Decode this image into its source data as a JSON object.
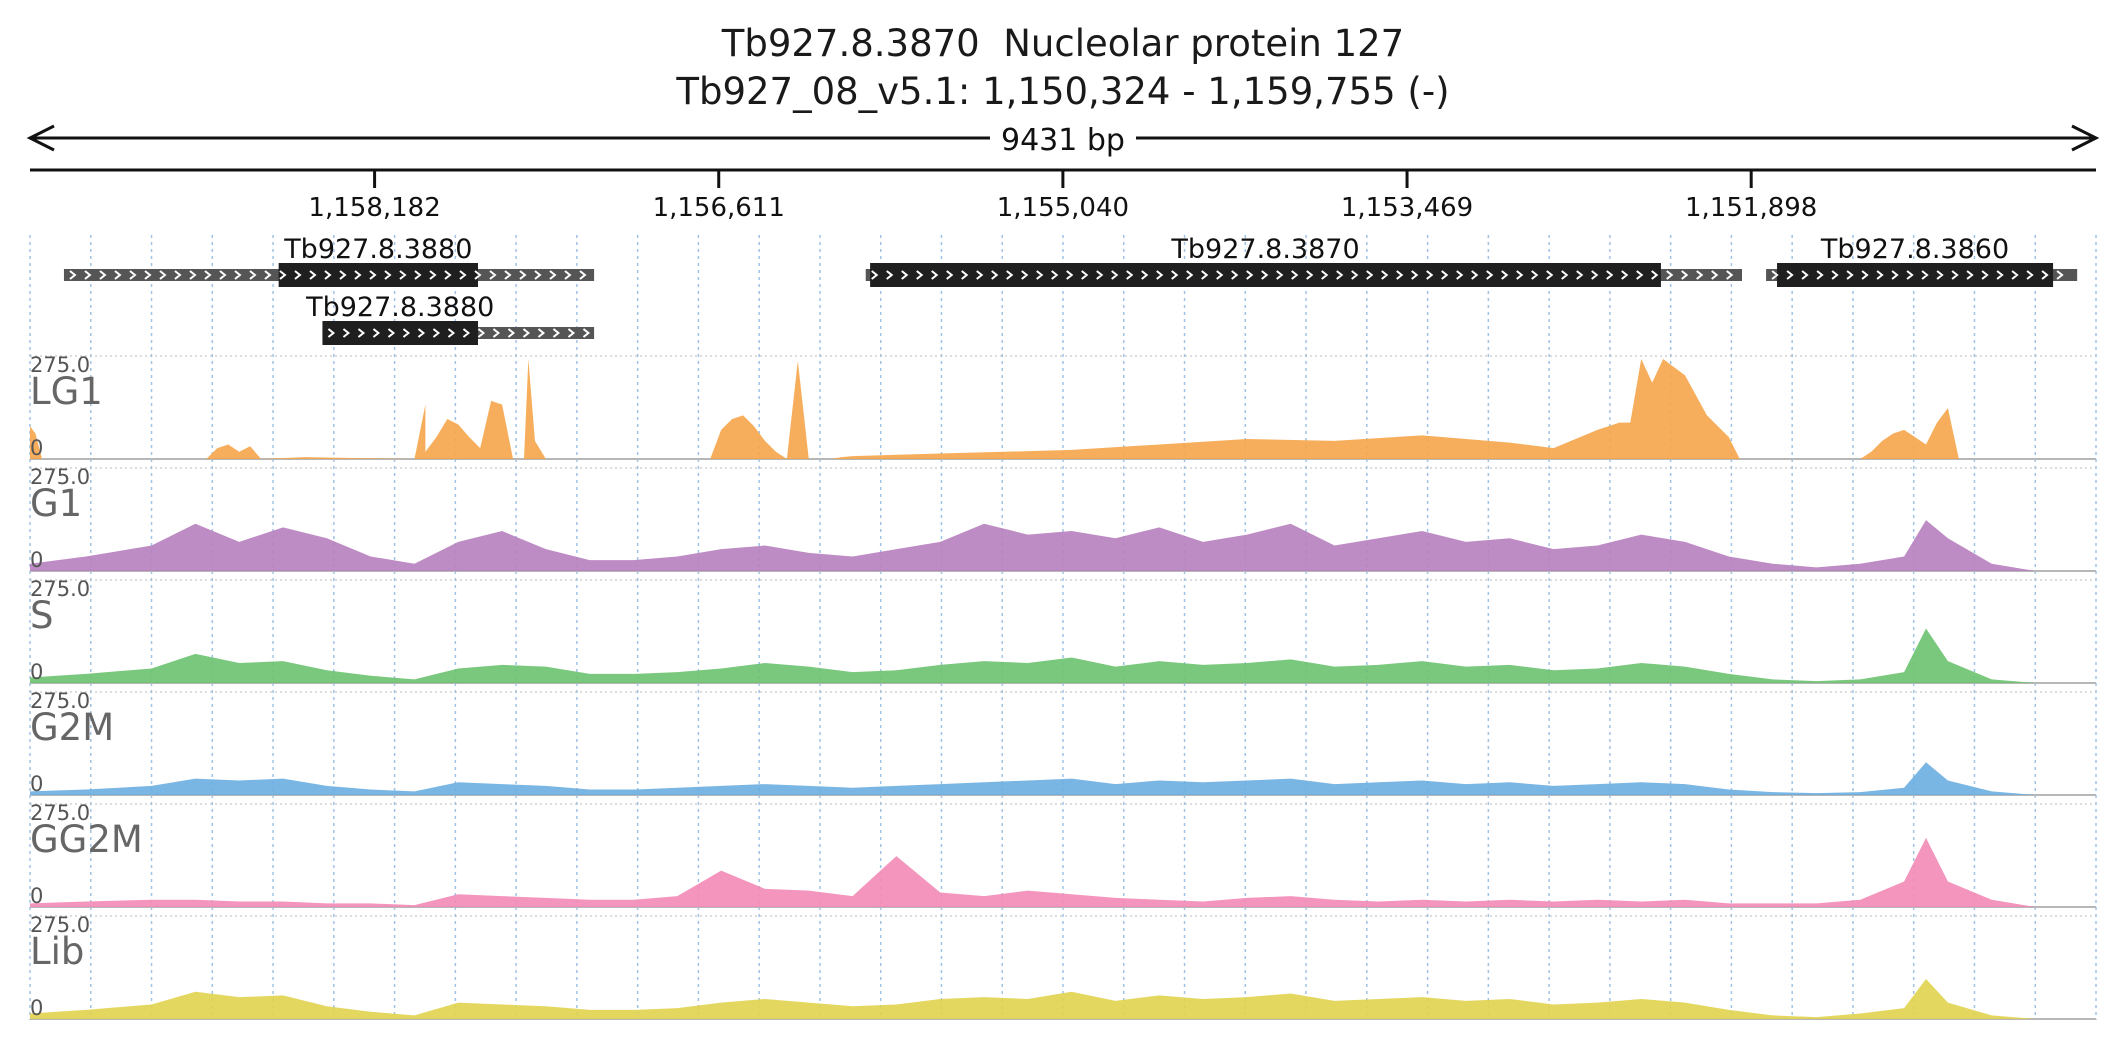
{
  "title": {
    "line1_gene": "Tb927.8.3870",
    "line1_product": "Nucleolar protein 127",
    "line2_location": "Tb927_08_v5.1: 1,150,324 - 1,159,755 (-)"
  },
  "region_length_label": "9431 bp",
  "colors": {
    "LG1": "#f5a54a",
    "G1": "#b77fbe",
    "S": "#6cc26f",
    "G2M": "#6aaee0",
    "GG2M": "#f38ab6",
    "Lib": "#e0d34e",
    "gene_box": "#1f1f1f",
    "utr_box": "#555555"
  },
  "chart_data": {
    "type": "area",
    "genomic_axis": {
      "start": 1150324,
      "end": 1159755,
      "direction": "reverse",
      "ticks": [
        1158182,
        1156611,
        1155040,
        1153469,
        1151898
      ],
      "tick_labels": [
        "1,158,182",
        "1,156,611",
        "1,155,040",
        "1,153,469",
        "1,151,898"
      ]
    },
    "genes": [
      {
        "name": "Tb927.8.3880",
        "utr_start": 1159600,
        "utr_end": 1157180,
        "cds_start": 1158620,
        "cds_end": 1157710
      },
      {
        "name": "Tb927.8.3880",
        "utr_start": 1158420,
        "utr_end": 1157180,
        "cds_start": 1158420,
        "cds_end": 1157710
      },
      {
        "name": "Tb927.8.3870",
        "utr_start": 1155940,
        "utr_end": 1151940,
        "cds_start": 1155920,
        "cds_end": 1152310
      },
      {
        "name": "Tb927.8.3860",
        "utr_start": 1151830,
        "utr_end": 1150410,
        "cds_start": 1151780,
        "cds_end": 1150520
      }
    ],
    "ylim": [
      0,
      275.0
    ],
    "series": [
      {
        "name": "LG1",
        "x": [
          1159755,
          1159730,
          1159700,
          1158950,
          1158900,
          1158850,
          1158800,
          1158750,
          1158700,
          1158500,
          1158000,
          1157950,
          1157950,
          1157900,
          1157850,
          1157800,
          1157750,
          1157700,
          1157650,
          1157600,
          1157550,
          1157500,
          1157480,
          1157450,
          1157400,
          1156650,
          1156600,
          1156550,
          1156500,
          1156450,
          1156400,
          1156350,
          1156300,
          1156250,
          1156200,
          1156150,
          1156100,
          1156050,
          1156000,
          1155600,
          1155000,
          1154600,
          1154200,
          1153800,
          1153400,
          1153000,
          1152800,
          1152600,
          1152500,
          1152450,
          1152400,
          1152350,
          1152300,
          1152200,
          1152100,
          1152000,
          1151950,
          1151400,
          1151350,
          1151300,
          1151250,
          1151200,
          1151150,
          1151100,
          1151050,
          1151000,
          1150950,
          1150400,
          1150324
        ],
        "values": [
          90,
          70,
          0,
          0,
          30,
          40,
          20,
          35,
          0,
          5,
          0,
          150,
          20,
          60,
          110,
          95,
          60,
          30,
          160,
          150,
          0,
          0,
          275,
          50,
          0,
          0,
          80,
          110,
          120,
          90,
          50,
          20,
          0,
          270,
          0,
          0,
          0,
          5,
          8,
          15,
          25,
          40,
          55,
          50,
          65,
          45,
          30,
          80,
          100,
          100,
          275,
          210,
          275,
          230,
          120,
          60,
          0,
          0,
          20,
          50,
          70,
          80,
          60,
          40,
          100,
          140,
          0,
          0,
          0
        ]
      },
      {
        "name": "G1",
        "x": [
          1159755,
          1159500,
          1159200,
          1159000,
          1158800,
          1158600,
          1158400,
          1158200,
          1158000,
          1157800,
          1157600,
          1157400,
          1157200,
          1157000,
          1156800,
          1156600,
          1156400,
          1156200,
          1156000,
          1155800,
          1155600,
          1155400,
          1155200,
          1155000,
          1154800,
          1154600,
          1154400,
          1154200,
          1154000,
          1153800,
          1153600,
          1153400,
          1153200,
          1153000,
          1152800,
          1152600,
          1152400,
          1152200,
          1152000,
          1151800,
          1151600,
          1151400,
          1151200,
          1151100,
          1151000,
          1150800,
          1150600,
          1150324
        ],
        "values": [
          20,
          40,
          70,
          130,
          80,
          120,
          90,
          40,
          20,
          80,
          110,
          60,
          30,
          30,
          40,
          60,
          70,
          50,
          40,
          60,
          80,
          130,
          100,
          110,
          90,
          120,
          80,
          100,
          130,
          70,
          90,
          110,
          80,
          90,
          60,
          70,
          100,
          80,
          40,
          20,
          10,
          20,
          40,
          140,
          90,
          20,
          0,
          0
        ]
      },
      {
        "name": "S",
        "x": [
          1159755,
          1159500,
          1159200,
          1159000,
          1158800,
          1158600,
          1158400,
          1158200,
          1158000,
          1157800,
          1157600,
          1157400,
          1157200,
          1157000,
          1156800,
          1156600,
          1156400,
          1156200,
          1156000,
          1155800,
          1155600,
          1155400,
          1155200,
          1155000,
          1154800,
          1154600,
          1154400,
          1154200,
          1154000,
          1153800,
          1153600,
          1153400,
          1153200,
          1153000,
          1152800,
          1152600,
          1152400,
          1152200,
          1152000,
          1151800,
          1151600,
          1151400,
          1151200,
          1151100,
          1151000,
          1150800,
          1150600,
          1150324
        ],
        "values": [
          15,
          25,
          40,
          80,
          55,
          60,
          35,
          20,
          10,
          40,
          50,
          45,
          25,
          25,
          30,
          40,
          55,
          45,
          30,
          35,
          50,
          60,
          55,
          70,
          45,
          60,
          50,
          55,
          65,
          45,
          50,
          60,
          45,
          50,
          35,
          40,
          55,
          45,
          25,
          10,
          5,
          10,
          30,
          150,
          60,
          10,
          0,
          0
        ]
      },
      {
        "name": "G2M",
        "x": [
          1159755,
          1159500,
          1159200,
          1159000,
          1158800,
          1158600,
          1158400,
          1158200,
          1158000,
          1157800,
          1157600,
          1157400,
          1157200,
          1157000,
          1156800,
          1156600,
          1156400,
          1156200,
          1156000,
          1155800,
          1155600,
          1155400,
          1155200,
          1155000,
          1154800,
          1154600,
          1154400,
          1154200,
          1154000,
          1153800,
          1153600,
          1153400,
          1153200,
          1153000,
          1152800,
          1152600,
          1152400,
          1152200,
          1152000,
          1151800,
          1151600,
          1151400,
          1151200,
          1151100,
          1151000,
          1150800,
          1150600,
          1150324
        ],
        "values": [
          10,
          15,
          25,
          45,
          40,
          45,
          25,
          15,
          10,
          35,
          30,
          25,
          15,
          15,
          20,
          25,
          30,
          25,
          20,
          25,
          30,
          35,
          40,
          45,
          30,
          40,
          35,
          40,
          45,
          30,
          35,
          40,
          30,
          35,
          25,
          30,
          35,
          30,
          15,
          8,
          5,
          8,
          20,
          90,
          40,
          10,
          0,
          0
        ]
      },
      {
        "name": "GG2M",
        "x": [
          1159755,
          1159500,
          1159200,
          1159000,
          1158800,
          1158600,
          1158400,
          1158200,
          1158000,
          1157800,
          1157600,
          1157400,
          1157200,
          1157000,
          1156800,
          1156600,
          1156400,
          1156200,
          1156000,
          1155800,
          1155600,
          1155400,
          1155200,
          1155000,
          1154800,
          1154600,
          1154400,
          1154200,
          1154000,
          1153800,
          1153600,
          1153400,
          1153200,
          1153000,
          1152800,
          1152600,
          1152400,
          1152200,
          1152000,
          1151800,
          1151600,
          1151400,
          1151200,
          1151100,
          1151000,
          1150800,
          1150600,
          1150324
        ],
        "values": [
          10,
          15,
          20,
          20,
          15,
          15,
          10,
          10,
          5,
          35,
          30,
          25,
          20,
          20,
          30,
          100,
          50,
          45,
          30,
          140,
          40,
          30,
          45,
          35,
          25,
          20,
          15,
          25,
          30,
          20,
          15,
          20,
          15,
          20,
          15,
          20,
          15,
          20,
          10,
          10,
          10,
          20,
          70,
          190,
          70,
          20,
          0,
          0
        ]
      },
      {
        "name": "Lib",
        "x": [
          1159755,
          1159500,
          1159200,
          1159000,
          1158800,
          1158600,
          1158400,
          1158200,
          1158000,
          1157800,
          1157600,
          1157400,
          1157200,
          1157000,
          1156800,
          1156600,
          1156400,
          1156200,
          1156000,
          1155800,
          1155600,
          1155400,
          1155200,
          1155000,
          1154800,
          1154600,
          1154400,
          1154200,
          1154000,
          1153800,
          1153600,
          1153400,
          1153200,
          1153000,
          1152800,
          1152600,
          1152400,
          1152200,
          1152000,
          1151800,
          1151600,
          1151400,
          1151200,
          1151100,
          1151000,
          1150800,
          1150600,
          1150324
        ],
        "values": [
          15,
          25,
          40,
          75,
          60,
          65,
          35,
          20,
          10,
          45,
          40,
          35,
          25,
          25,
          30,
          45,
          55,
          45,
          35,
          40,
          55,
          60,
          55,
          75,
          50,
          65,
          55,
          60,
          70,
          50,
          55,
          60,
          50,
          55,
          40,
          45,
          55,
          45,
          25,
          10,
          5,
          15,
          30,
          110,
          45,
          10,
          0,
          0
        ]
      }
    ]
  }
}
